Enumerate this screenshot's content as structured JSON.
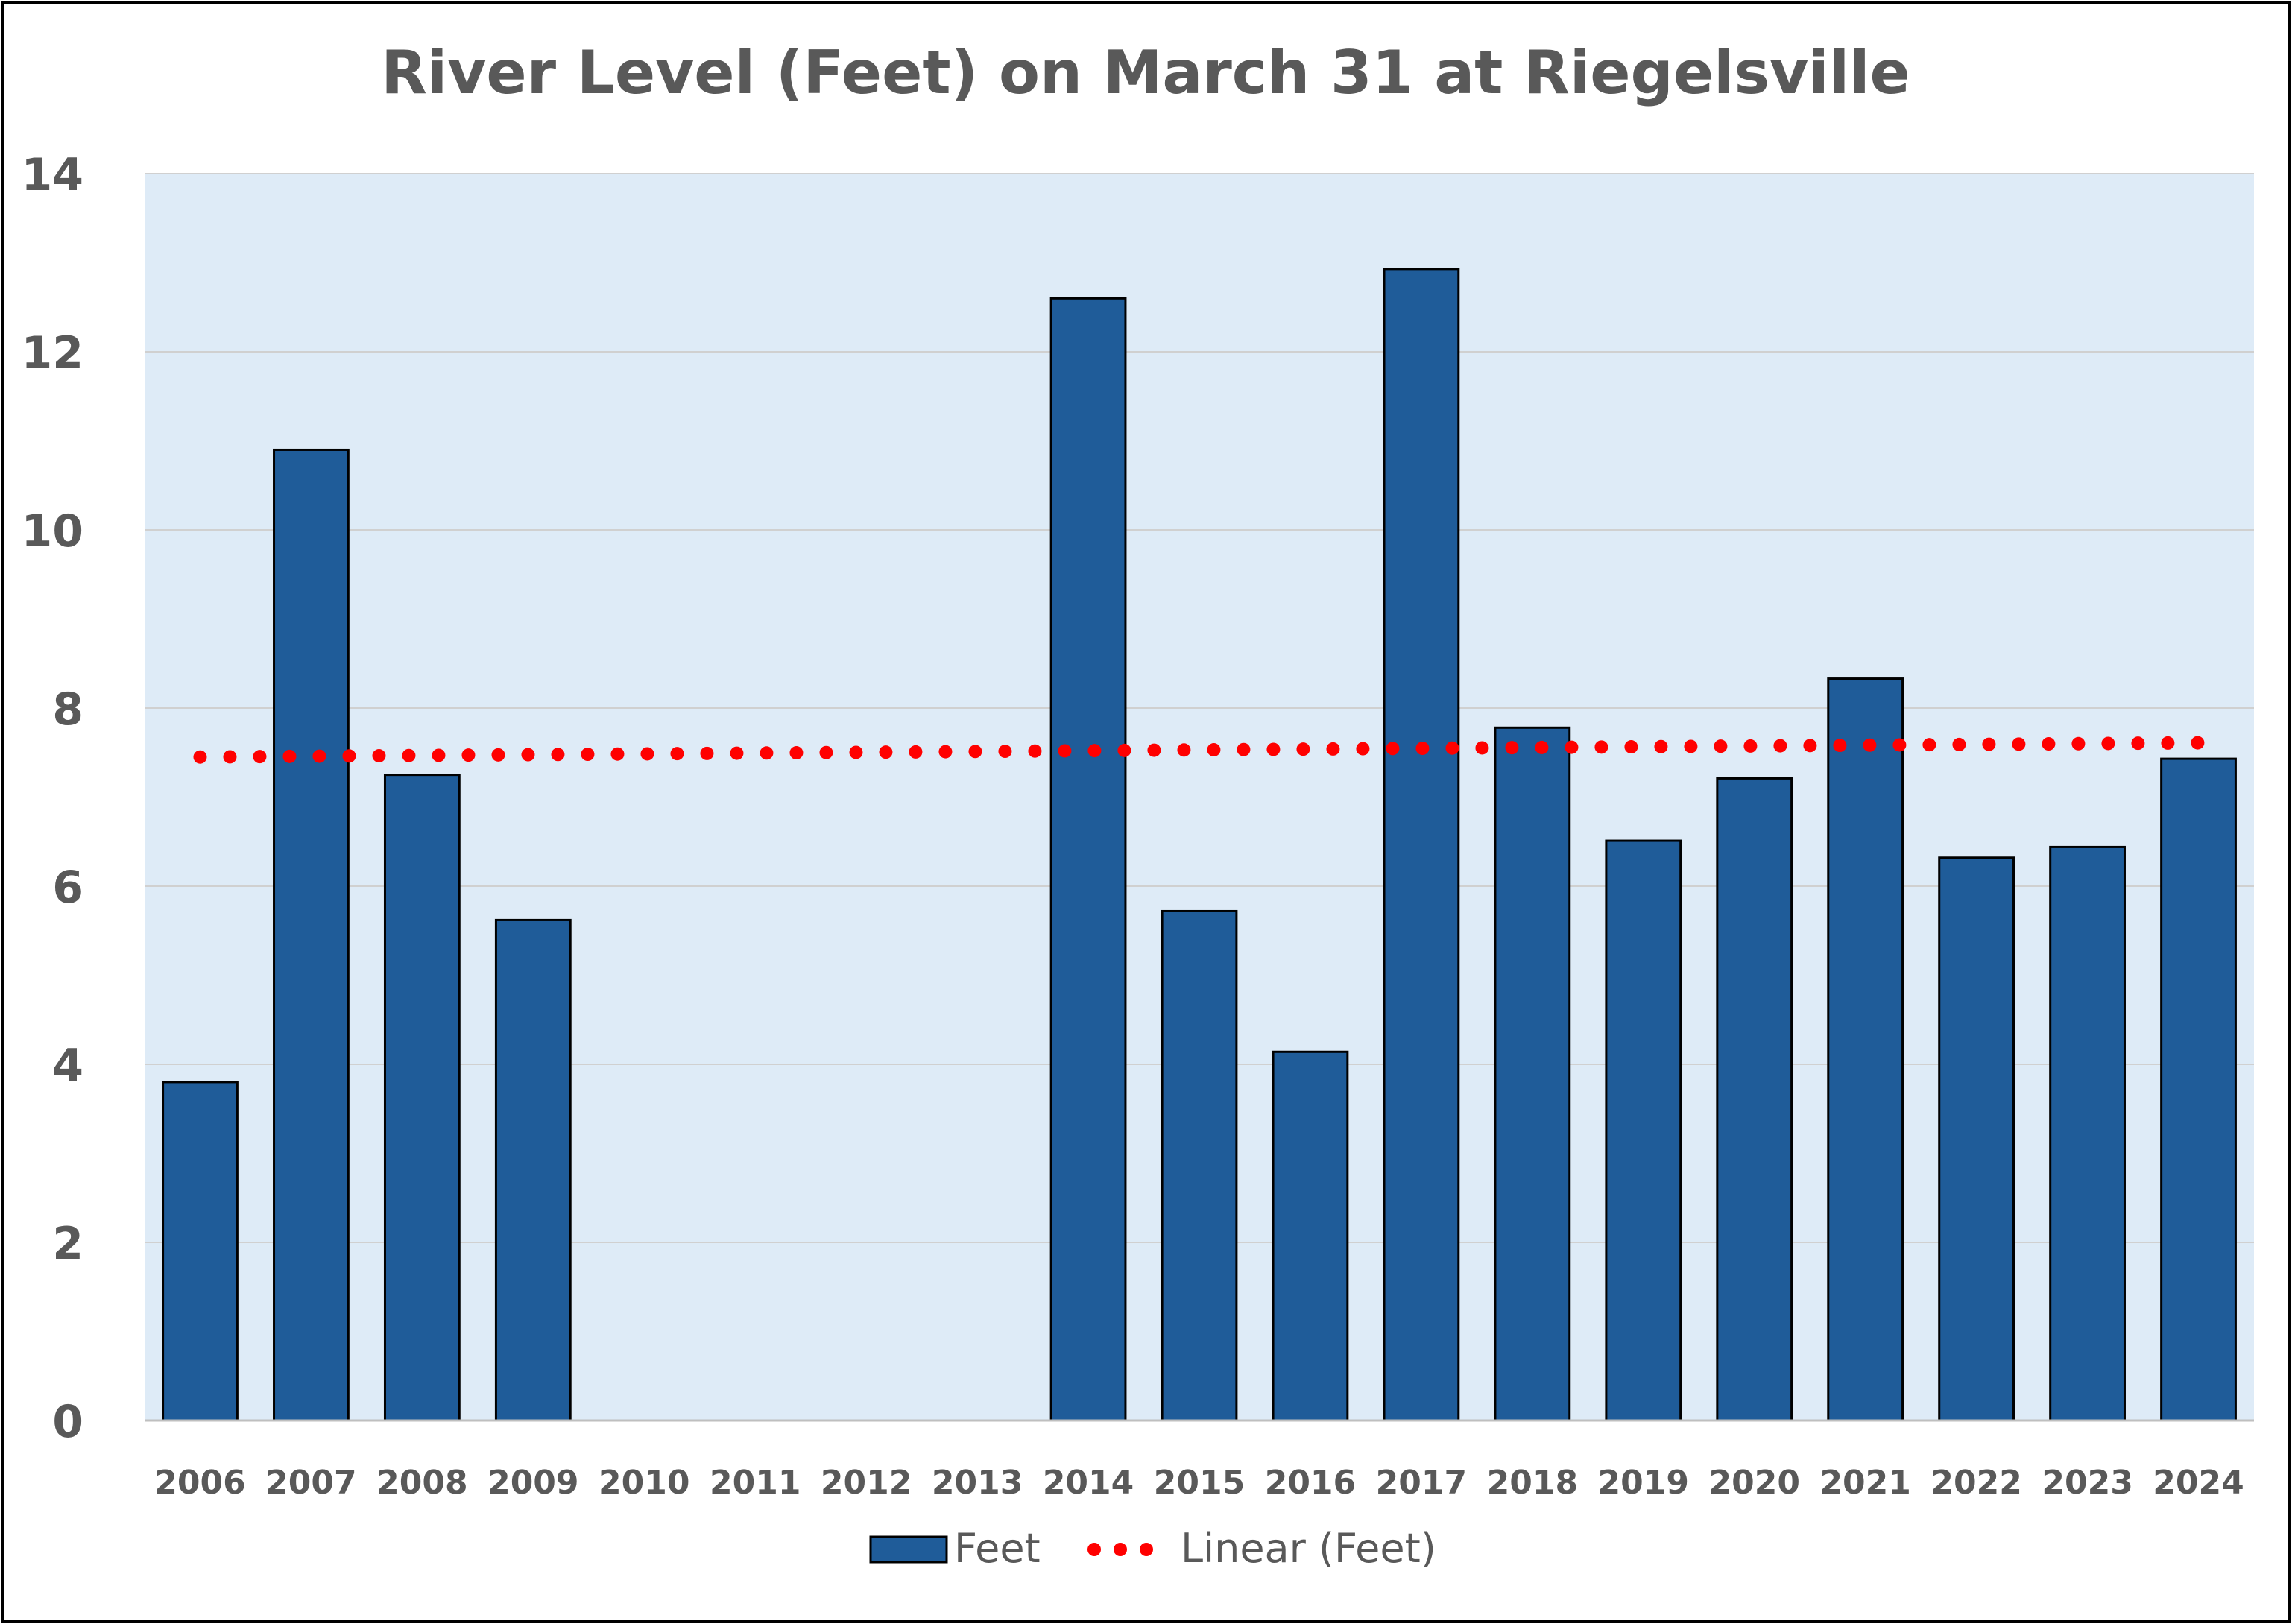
{
  "chart_data": {
    "type": "bar",
    "title": "River Level (Feet) on March 31 at Riegelsville",
    "xlabel": "",
    "ylabel": "",
    "categories": [
      "2006",
      "2007",
      "2008",
      "2009",
      "2010",
      "2011",
      "2012",
      "2013",
      "2014",
      "2015",
      "2016",
      "2017",
      "2018",
      "2019",
      "2020",
      "2021",
      "2022",
      "2023",
      "2024"
    ],
    "series": [
      {
        "name": "Feet",
        "values": [
          3.8,
          10.9,
          7.25,
          5.62,
          null,
          null,
          null,
          null,
          12.6,
          5.72,
          4.14,
          12.93,
          7.78,
          6.51,
          7.21,
          8.33,
          6.32,
          6.44,
          7.43
        ],
        "color": "#1F5C99"
      }
    ],
    "trendline": {
      "name": "Linear (Feet)",
      "type": "linear",
      "start_value": 7.45,
      "end_value": 7.61,
      "color": "#FF0000",
      "style": "dotted"
    },
    "ylim": [
      0,
      14
    ],
    "yticks": [
      0,
      2,
      4,
      6,
      8,
      10,
      12,
      14
    ],
    "grid": true,
    "plot_background": "#DEEBF7",
    "gridline_color": "#D0D0D0",
    "legend": {
      "position": "bottom",
      "items": [
        "Feet",
        "Linear (Feet)"
      ]
    }
  }
}
